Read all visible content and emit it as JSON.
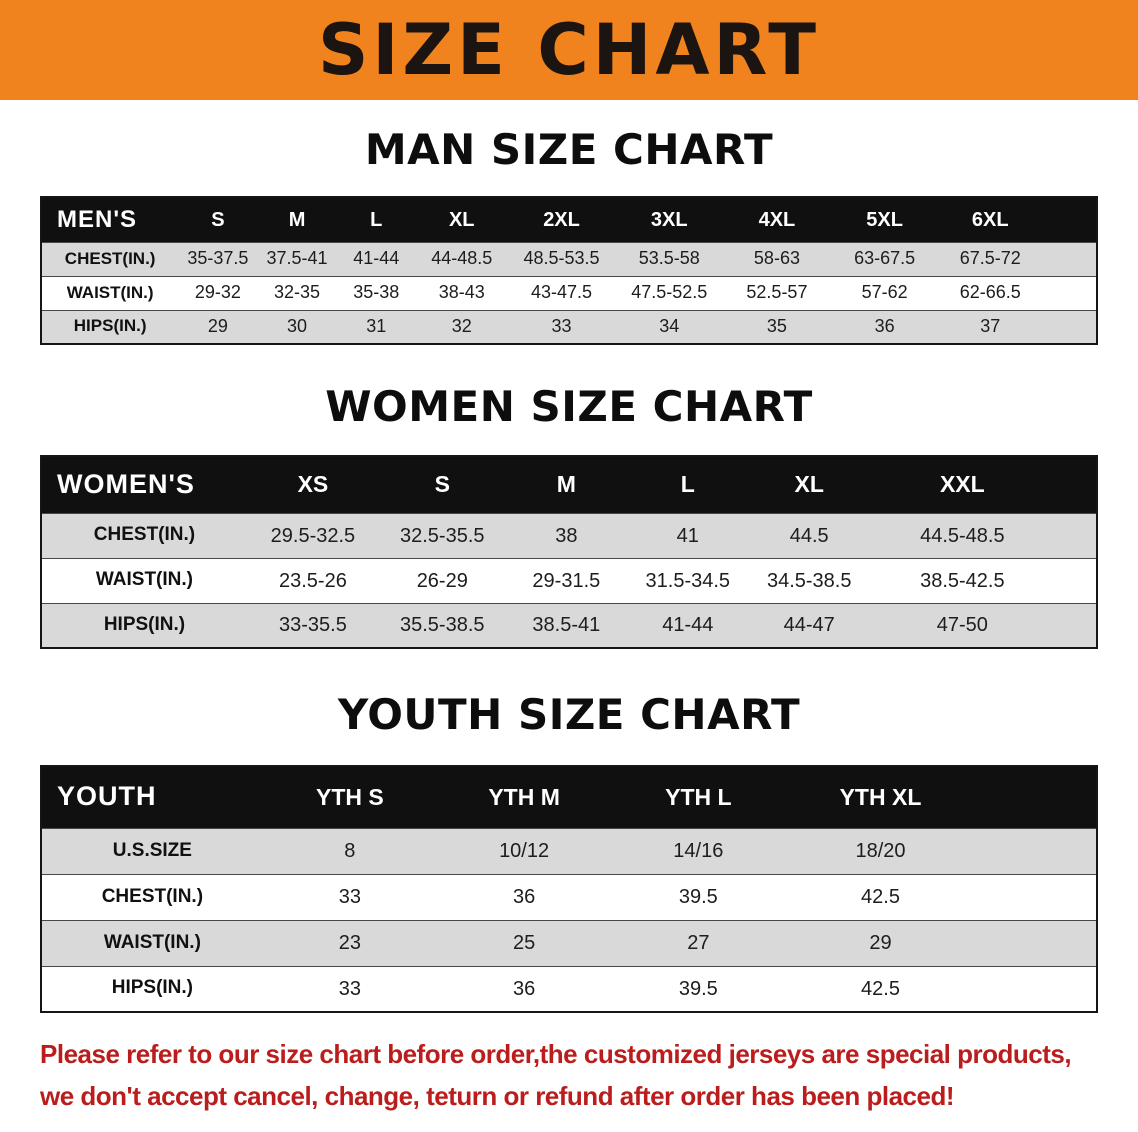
{
  "banner": {
    "title": "SIZE CHART",
    "bg_color": "#f1831f",
    "text_color": "#1b1410"
  },
  "sections": [
    {
      "name": "man-size-chart-section",
      "heading": "MAN SIZE CHART",
      "table": {
        "header": [
          "MEN'S",
          "S",
          "M",
          "L",
          "XL",
          "2XL",
          "3XL",
          "4XL",
          "5XL",
          "6XL"
        ],
        "rows": [
          [
            "CHEST(IN.)",
            "35-37.5",
            "37.5-41",
            "41-44",
            "44-48.5",
            "48.5-53.5",
            "53.5-58",
            "58-63",
            "63-67.5",
            "67.5-72"
          ],
          [
            "WAIST(IN.)",
            "29-32",
            "32-35",
            "35-38",
            "38-43",
            "43-47.5",
            "47.5-52.5",
            "52.5-57",
            "57-62",
            "62-66.5"
          ],
          [
            "HIPS(IN.)",
            "29",
            "30",
            "31",
            "32",
            "33",
            "34",
            "35",
            "36",
            "37"
          ]
        ]
      }
    },
    {
      "name": "women-size-chart-section",
      "heading": "WOMEN SIZE CHART",
      "table": {
        "header": [
          "WOMEN'S",
          "XS",
          "S",
          "M",
          "L",
          "XL",
          "XXL"
        ],
        "rows": [
          [
            "CHEST(IN.)",
            "29.5-32.5",
            "32.5-35.5",
            "38",
            "41",
            "44.5",
            "44.5-48.5"
          ],
          [
            "WAIST(IN.)",
            "23.5-26",
            "26-29",
            "29-31.5",
            "31.5-34.5",
            "34.5-38.5",
            "38.5-42.5"
          ],
          [
            "HIPS(IN.)",
            "33-35.5",
            "35.5-38.5",
            "38.5-41",
            "41-44",
            "44-47",
            "47-50"
          ]
        ]
      }
    },
    {
      "name": "youth-size-chart-section",
      "heading": "YOUTH SIZE CHART",
      "table": {
        "header": [
          "YOUTH",
          "YTH S",
          "YTH M",
          "YTH L",
          "YTH XL"
        ],
        "rows": [
          [
            "U.S.SIZE",
            "8",
            "10/12",
            "14/16",
            "18/20"
          ],
          [
            "CHEST(IN.)",
            "33",
            "36",
            "39.5",
            "42.5"
          ],
          [
            "WAIST(IN.)",
            "23",
            "25",
            "27",
            "29"
          ],
          [
            "HIPS(IN.)",
            "33",
            "36",
            "39.5",
            "42.5"
          ]
        ]
      }
    }
  ],
  "table_style": {
    "header_bg": "#101010",
    "header_text": "#ffffff",
    "stripe_color": "#d9d9d9"
  },
  "disclaimer": {
    "lines": [
      "Please refer to our size chart before order,the customized jerseys are special products,",
      "we don't accept cancel, change, teturn or refund after order has been placed!"
    ],
    "color": "#bb1d1d"
  }
}
